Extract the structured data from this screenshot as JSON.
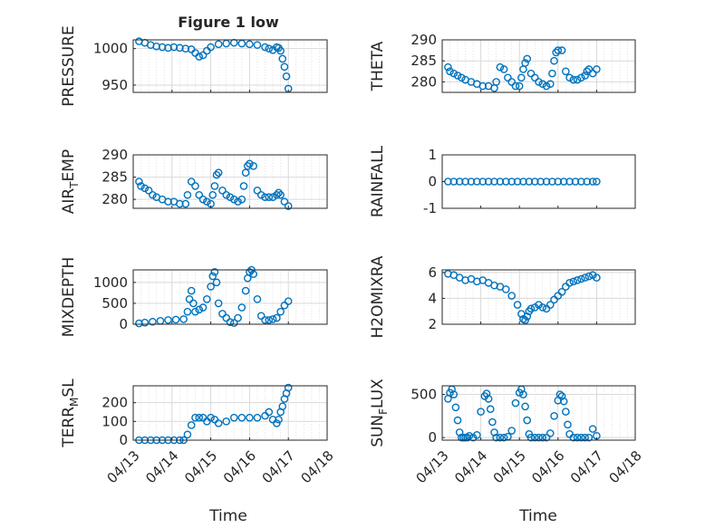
{
  "figure": {
    "title": "Figure 1 low",
    "xlabel": "Time",
    "marker_color": "#0072BD",
    "axis_color": "#262626",
    "grid_color": "#d9d9d9"
  },
  "chart_data": [
    {
      "type": "scatter",
      "title": "Figure 1 low",
      "ylabel": "PRESSURE",
      "ylabel_parts": {
        "main": "PRESSURE",
        "sub": "",
        "rest": ""
      },
      "xlim": [
        0,
        5
      ],
      "ylim": [
        940,
        1012
      ],
      "yticks": [
        950,
        1000
      ],
      "xtick_labels": [],
      "xticks": [
        0,
        1,
        2,
        3,
        4,
        5
      ],
      "grid": true,
      "x": [
        0.15,
        0.3,
        0.45,
        0.6,
        0.75,
        0.9,
        1.05,
        1.2,
        1.35,
        1.5,
        1.6,
        1.7,
        1.8,
        1.9,
        2.0,
        2.2,
        2.4,
        2.6,
        2.8,
        3.0,
        3.2,
        3.4,
        3.5,
        3.6,
        3.7,
        3.75,
        3.8,
        3.85,
        3.9,
        3.95,
        4.0
      ],
      "y": [
        1010,
        1008,
        1005,
        1003,
        1002,
        1001,
        1002,
        1001,
        1000,
        999,
        994,
        989,
        991,
        997,
        1002,
        1006,
        1007,
        1008,
        1007,
        1006,
        1005,
        1002,
        1000,
        998,
        1002,
        1001,
        997,
        986,
        975,
        962,
        945
      ]
    },
    {
      "type": "scatter",
      "ylabel": "THETA",
      "ylabel_parts": {
        "main": "THETA",
        "sub": "",
        "rest": ""
      },
      "xlim": [
        0,
        5
      ],
      "ylim": [
        277.5,
        290
      ],
      "yticks": [
        280,
        285,
        290
      ],
      "xtick_labels": [],
      "xticks": [
        0,
        1,
        2,
        3,
        4,
        5
      ],
      "grid": true,
      "x": [
        0.15,
        0.2,
        0.3,
        0.4,
        0.5,
        0.6,
        0.75,
        0.9,
        1.05,
        1.2,
        1.35,
        1.4,
        1.5,
        1.6,
        1.7,
        1.8,
        1.9,
        2.0,
        2.05,
        2.1,
        2.15,
        2.2,
        2.3,
        2.4,
        2.5,
        2.6,
        2.7,
        2.8,
        2.85,
        2.9,
        2.95,
        3.0,
        3.1,
        3.2,
        3.3,
        3.4,
        3.5,
        3.6,
        3.7,
        3.75,
        3.8,
        3.9,
        4.0
      ],
      "y": [
        283.5,
        282.5,
        282,
        281.5,
        281,
        280.5,
        280,
        279.5,
        279,
        279,
        278.5,
        280,
        283.5,
        283,
        281,
        280,
        279,
        279,
        281,
        283,
        284.5,
        285.5,
        282,
        281,
        280,
        279.5,
        279,
        279.5,
        282,
        285,
        287,
        287.5,
        287.5,
        282.5,
        281,
        280.5,
        280.5,
        281,
        281.5,
        282.5,
        283,
        282,
        283
      ]
    },
    {
      "type": "scatter",
      "ylabel": "AIR_TEMP",
      "ylabel_parts": {
        "main": "AIR",
        "sub": "T",
        "rest": "EMP"
      },
      "xlim": [
        0,
        5
      ],
      "ylim": [
        278,
        290
      ],
      "yticks": [
        280,
        285,
        290
      ],
      "xtick_labels": [],
      "xticks": [
        0,
        1,
        2,
        3,
        4,
        5
      ],
      "grid": true,
      "x": [
        0.15,
        0.2,
        0.3,
        0.4,
        0.5,
        0.6,
        0.75,
        0.9,
        1.05,
        1.2,
        1.35,
        1.4,
        1.5,
        1.6,
        1.7,
        1.8,
        1.9,
        2.0,
        2.05,
        2.1,
        2.15,
        2.2,
        2.3,
        2.4,
        2.5,
        2.6,
        2.7,
        2.8,
        2.85,
        2.9,
        2.95,
        3.0,
        3.1,
        3.2,
        3.3,
        3.4,
        3.5,
        3.6,
        3.7,
        3.75,
        3.8,
        3.9,
        4.0
      ],
      "y": [
        284,
        283,
        282.5,
        282,
        281,
        280.5,
        280,
        279.5,
        279.5,
        279,
        279,
        281,
        284,
        283,
        281,
        280,
        279.5,
        279,
        281,
        283,
        285.5,
        286,
        282,
        281,
        280.5,
        280,
        279.5,
        280,
        283,
        286,
        287.5,
        288,
        287.5,
        282,
        281,
        280.5,
        280.5,
        280.5,
        281,
        281.5,
        281,
        279.5,
        278.5
      ]
    },
    {
      "type": "scatter",
      "ylabel": "RAINFALL",
      "ylabel_parts": {
        "main": "RAINFALL",
        "sub": "",
        "rest": ""
      },
      "xlim": [
        0,
        5
      ],
      "ylim": [
        -1,
        1
      ],
      "yticks": [
        -1,
        0,
        1
      ],
      "xtick_labels": [],
      "xticks": [
        0,
        1,
        2,
        3,
        4,
        5
      ],
      "grid": false,
      "x": [
        0.15,
        0.3,
        0.45,
        0.6,
        0.75,
        0.9,
        1.05,
        1.2,
        1.35,
        1.5,
        1.65,
        1.8,
        1.95,
        2.1,
        2.25,
        2.4,
        2.55,
        2.7,
        2.85,
        3.0,
        3.15,
        3.3,
        3.45,
        3.6,
        3.75,
        3.9,
        4.0
      ],
      "y": [
        0,
        0,
        0,
        0,
        0,
        0,
        0,
        0,
        0,
        0,
        0,
        0,
        0,
        0,
        0,
        0,
        0,
        0,
        0,
        0,
        0,
        0,
        0,
        0,
        0,
        0,
        0
      ]
    },
    {
      "type": "scatter",
      "ylabel": "MIXDEPTH",
      "ylabel_parts": {
        "main": "MIXDEPTH",
        "sub": "",
        "rest": ""
      },
      "xlim": [
        0,
        5
      ],
      "ylim": [
        0,
        1300
      ],
      "yticks": [
        0,
        500,
        1000
      ],
      "xtick_labels": [],
      "xticks": [
        0,
        1,
        2,
        3,
        4,
        5
      ],
      "grid": true,
      "x": [
        0.15,
        0.3,
        0.5,
        0.7,
        0.9,
        1.1,
        1.3,
        1.4,
        1.45,
        1.5,
        1.55,
        1.6,
        1.7,
        1.8,
        1.9,
        2.0,
        2.05,
        2.1,
        2.15,
        2.2,
        2.3,
        2.4,
        2.5,
        2.6,
        2.7,
        2.8,
        2.9,
        2.95,
        3.0,
        3.05,
        3.1,
        3.2,
        3.3,
        3.4,
        3.5,
        3.6,
        3.7,
        3.8,
        3.9,
        4.0
      ],
      "y": [
        20,
        40,
        60,
        80,
        100,
        110,
        120,
        300,
        600,
        800,
        500,
        300,
        350,
        400,
        600,
        900,
        1150,
        1250,
        1000,
        500,
        250,
        150,
        50,
        30,
        150,
        400,
        800,
        1100,
        1250,
        1300,
        1200,
        600,
        200,
        100,
        100,
        120,
        150,
        300,
        450,
        550
      ]
    },
    {
      "type": "scatter",
      "ylabel": "H2OMIXRA",
      "ylabel_parts": {
        "main": "H2OMIXRA",
        "sub": "",
        "rest": ""
      },
      "xlim": [
        0,
        5
      ],
      "ylim": [
        2,
        6.2
      ],
      "yticks": [
        2,
        4,
        6
      ],
      "xtick_labels": [],
      "xticks": [
        0,
        1,
        2,
        3,
        4,
        5
      ],
      "grid": true,
      "x": [
        0.15,
        0.3,
        0.45,
        0.6,
        0.75,
        0.9,
        1.05,
        1.2,
        1.35,
        1.5,
        1.65,
        1.8,
        1.95,
        2.05,
        2.1,
        2.15,
        2.2,
        2.25,
        2.3,
        2.4,
        2.5,
        2.6,
        2.7,
        2.8,
        2.9,
        3.0,
        3.1,
        3.2,
        3.3,
        3.4,
        3.5,
        3.6,
        3.7,
        3.8,
        3.9,
        4.0
      ],
      "y": [
        5.9,
        5.8,
        5.6,
        5.4,
        5.5,
        5.3,
        5.4,
        5.2,
        5.0,
        4.9,
        4.7,
        4.2,
        3.5,
        2.8,
        2.4,
        2.3,
        2.6,
        3.0,
        3.2,
        3.3,
        3.5,
        3.3,
        3.2,
        3.5,
        3.9,
        4.2,
        4.5,
        4.9,
        5.2,
        5.3,
        5.4,
        5.5,
        5.6,
        5.7,
        5.8,
        5.6
      ]
    },
    {
      "type": "scatter",
      "ylabel": "TERR_MSL",
      "ylabel_parts": {
        "main": "TERR",
        "sub": "M",
        "rest": "SL"
      },
      "xlim": [
        0,
        5
      ],
      "ylim": [
        0,
        290
      ],
      "yticks": [
        0,
        100,
        200
      ],
      "xtick_labels": [
        "04/13",
        "04/14",
        "04/15",
        "04/16",
        "04/17",
        "04/18"
      ],
      "xticks": [
        0,
        1,
        2,
        3,
        4,
        5
      ],
      "grid": true,
      "x": [
        0.15,
        0.3,
        0.45,
        0.6,
        0.75,
        0.9,
        1.05,
        1.2,
        1.3,
        1.4,
        1.5,
        1.6,
        1.7,
        1.8,
        1.9,
        2.0,
        2.1,
        2.2,
        2.4,
        2.6,
        2.8,
        3.0,
        3.2,
        3.4,
        3.5,
        3.6,
        3.7,
        3.75,
        3.8,
        3.85,
        3.9,
        3.95,
        4.0
      ],
      "y": [
        0,
        0,
        0,
        0,
        0,
        0,
        0,
        0,
        0,
        30,
        80,
        120,
        120,
        120,
        100,
        120,
        110,
        90,
        100,
        120,
        120,
        120,
        120,
        130,
        150,
        110,
        90,
        110,
        150,
        180,
        220,
        250,
        280
      ]
    },
    {
      "type": "scatter",
      "ylabel": "SUN_FLUX",
      "ylabel_parts": {
        "main": "SUN",
        "sub": "F",
        "rest": "LUX"
      },
      "xlim": [
        0,
        5
      ],
      "ylim": [
        -30,
        600
      ],
      "yticks": [
        0,
        500
      ],
      "xtick_labels": [
        "04/13",
        "04/14",
        "04/15",
        "04/16",
        "04/17",
        "04/18"
      ],
      "xticks": [
        0,
        1,
        2,
        3,
        4,
        5
      ],
      "grid": true,
      "x": [
        0.15,
        0.2,
        0.25,
        0.3,
        0.35,
        0.4,
        0.45,
        0.5,
        0.55,
        0.6,
        0.65,
        0.7,
        0.8,
        0.9,
        1.0,
        1.1,
        1.15,
        1.2,
        1.25,
        1.3,
        1.35,
        1.4,
        1.5,
        1.6,
        1.7,
        1.8,
        1.9,
        2.0,
        2.05,
        2.1,
        2.15,
        2.2,
        2.25,
        2.3,
        2.4,
        2.5,
        2.6,
        2.7,
        2.8,
        2.9,
        3.0,
        3.05,
        3.1,
        3.15,
        3.2,
        3.25,
        3.3,
        3.4,
        3.5,
        3.6,
        3.7,
        3.8,
        3.9,
        4.0
      ],
      "y": [
        450,
        520,
        560,
        500,
        350,
        200,
        60,
        0,
        0,
        0,
        0,
        20,
        0,
        30,
        300,
        480,
        510,
        450,
        330,
        180,
        60,
        0,
        0,
        0,
        10,
        80,
        400,
        520,
        560,
        500,
        360,
        200,
        40,
        0,
        0,
        0,
        0,
        0,
        50,
        250,
        430,
        500,
        480,
        420,
        300,
        150,
        40,
        0,
        0,
        0,
        0,
        0,
        100,
        20
      ]
    }
  ]
}
